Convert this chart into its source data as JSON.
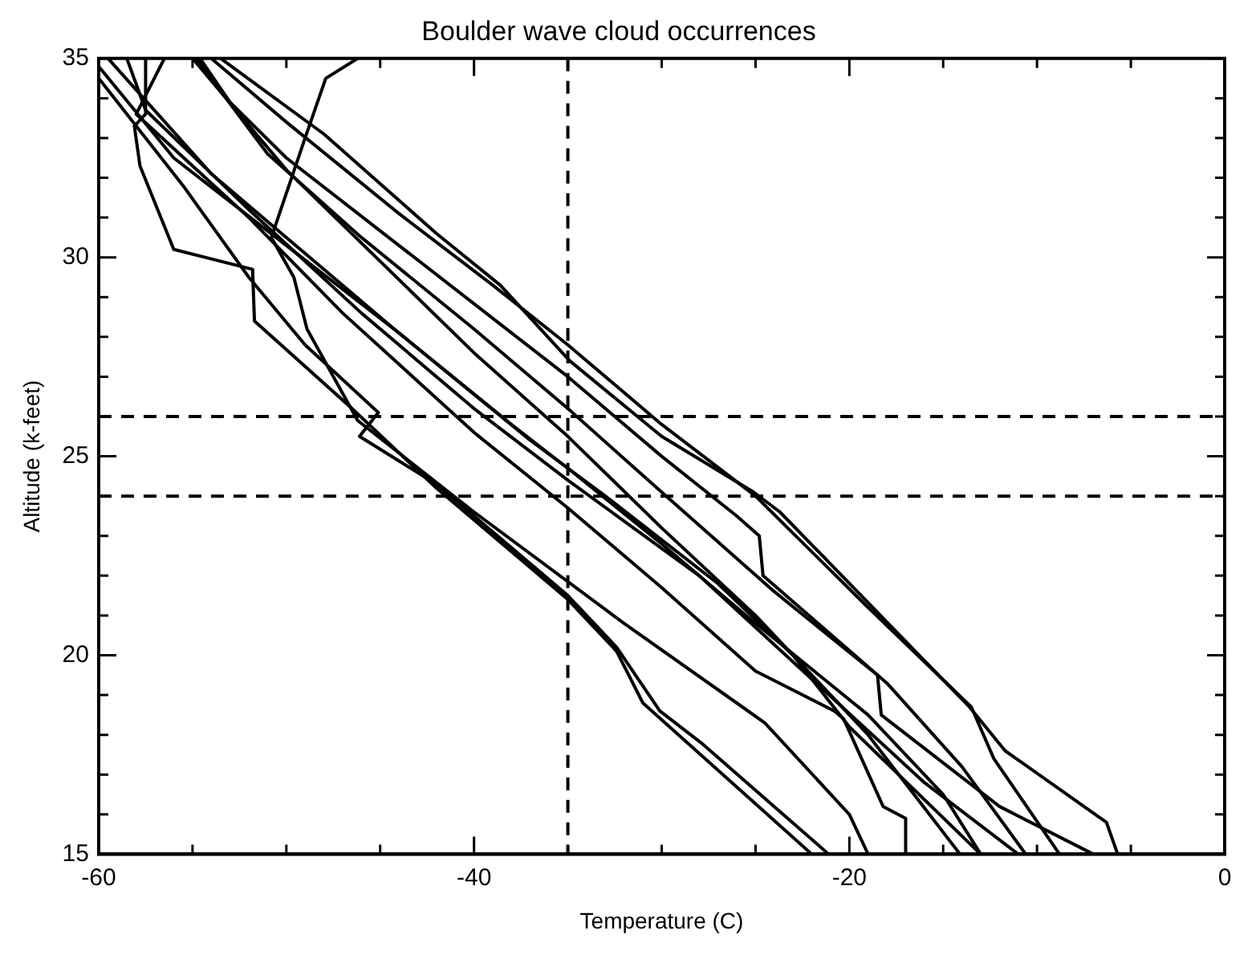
{
  "chart_data": {
    "type": "line",
    "title": "Boulder wave cloud occurrences",
    "xlabel": "Temperature (C)",
    "ylabel": "Altitude (k-feet)",
    "xlim": [
      -60,
      0
    ],
    "ylim": [
      15,
      35
    ],
    "xticks": [
      -60,
      {
        "value": -55,
        "label": null
      },
      {
        "value": -50,
        "label": null
      },
      {
        "value": -45,
        "label": null
      },
      -40,
      {
        "value": -35,
        "label": null
      },
      {
        "value": -30,
        "label": null
      },
      {
        "value": -25,
        "label": null
      },
      -20,
      {
        "value": -15,
        "label": null
      },
      {
        "value": -10,
        "label": null
      },
      {
        "value": -5,
        "label": null
      },
      0
    ],
    "yticks": [
      15,
      {
        "value": 16,
        "label": null
      },
      {
        "value": 17,
        "label": null
      },
      {
        "value": 18,
        "label": null
      },
      {
        "value": 19,
        "label": null
      },
      20,
      {
        "value": 21,
        "label": null
      },
      {
        "value": 22,
        "label": null
      },
      {
        "value": 23,
        "label": null
      },
      {
        "value": 24,
        "label": null
      },
      25,
      {
        "value": 26,
        "label": null
      },
      {
        "value": 27,
        "label": null
      },
      {
        "value": 28,
        "label": null
      },
      {
        "value": 29,
        "label": null
      },
      30,
      {
        "value": 31,
        "label": null
      },
      {
        "value": 32,
        "label": null
      },
      {
        "value": 33,
        "label": null
      },
      {
        "value": 34,
        "label": null
      },
      35
    ],
    "grid": false,
    "legend": false,
    "marker": "none",
    "line_style": "solid",
    "ref_lines": [
      {
        "axis": "x",
        "value": -35,
        "color": "#000000",
        "line_style": "dashed"
      },
      {
        "axis": "y",
        "value": 24,
        "color": "#000000",
        "line_style": "dashed"
      },
      {
        "axis": "y",
        "value": 26,
        "color": "#000000",
        "line_style": "dashed"
      }
    ],
    "series": [
      {
        "color": "#000000",
        "x": [
          -57.5,
          -57.5,
          -58.1,
          -57.8,
          -56,
          -51.8,
          -51.7,
          -46.5,
          -42,
          -35,
          -32.4,
          -31,
          -22
        ],
        "values": [
          35,
          33.6,
          33.3,
          32.3,
          30.2,
          29.7,
          28.4,
          26.2,
          24.2,
          21.4,
          20.1,
          18.8,
          15
        ]
      },
      {
        "color": "#000000",
        "x": [
          -60,
          -55.5,
          -52,
          -49,
          -45.1,
          -46.1,
          -42,
          -35,
          -32.4,
          -30.1,
          -27.9,
          -21.1
        ],
        "values": [
          34.5,
          31.8,
          29.5,
          27.8,
          26.1,
          25.5,
          24.3,
          21.5,
          20.2,
          18.6,
          17.8,
          15
        ]
      },
      {
        "color": "#000000",
        "x": [
          -46.2,
          -47.9,
          -49,
          -50.8,
          -49.6,
          -48.9,
          -46.2,
          -40,
          -32,
          -26,
          -24.5,
          -20,
          -19
        ],
        "values": [
          35,
          34.5,
          33,
          30.5,
          29.5,
          28.2,
          25.9,
          23.6,
          20.8,
          18.8,
          18.3,
          16,
          15
        ]
      },
      {
        "color": "#000000",
        "x": [
          -56.5,
          -58,
          -52,
          -47,
          -40,
          -35,
          -30,
          -25,
          -20.8,
          -20.3,
          -18.2,
          -17,
          -17
        ],
        "values": [
          35,
          33.6,
          31,
          28.6,
          25.6,
          23.7,
          21.7,
          19.6,
          18.6,
          18.4,
          16.2,
          15.9,
          15
        ]
      },
      {
        "color": "#000000",
        "x": [
          -60,
          -56,
          -50,
          -44,
          -38,
          -35,
          -30,
          -25,
          -19,
          -15,
          -13
        ],
        "values": [
          34.8,
          32.5,
          30.3,
          28.1,
          25.8,
          24.7,
          22.8,
          20.8,
          18.5,
          16.5,
          15
        ]
      },
      {
        "color": "#000000",
        "x": [
          -58.5,
          -57.5,
          -52,
          -46,
          -40,
          -35,
          -28,
          -22,
          -16,
          -11
        ],
        "values": [
          35,
          33.7,
          31.2,
          28.6,
          26.2,
          24.4,
          22,
          19.4,
          16.8,
          15
        ]
      },
      {
        "color": "#000000",
        "x": [
          -54.6,
          -53,
          -50,
          -44,
          -38,
          -35,
          -30,
          -26,
          -24.8,
          -24.6,
          -18,
          -14,
          -10.6
        ],
        "values": [
          35,
          33.9,
          32.5,
          30.3,
          28.1,
          27,
          25,
          23.5,
          23,
          22,
          19.3,
          17.2,
          15
        ]
      },
      {
        "color": "#000000",
        "x": [
          -54,
          -50,
          -44,
          -39,
          -35,
          -30,
          -25,
          -19,
          -13.5,
          -12.3,
          -8.8
        ],
        "values": [
          35,
          33.4,
          31.1,
          29.3,
          27.8,
          25.8,
          24,
          21.2,
          18.7,
          17.4,
          15
        ]
      },
      {
        "color": "#000000",
        "x": [
          -53.5,
          -48,
          -42,
          -38.6,
          -34.9,
          -30,
          -25.1,
          -23.7,
          -13.6,
          -11.7,
          -6.3,
          -5.7
        ],
        "values": [
          35,
          33.1,
          30.6,
          29.3,
          27.4,
          25.5,
          24.1,
          23.6,
          18.7,
          17.6,
          15.8,
          15
        ]
      },
      {
        "color": "#000000",
        "x": [
          -55,
          -50,
          -45,
          -40,
          -35,
          -30,
          -25,
          -20.6,
          -19,
          -14.1
        ],
        "values": [
          35,
          32.2,
          29.9,
          27.6,
          25.5,
          23.2,
          21,
          18.8,
          18,
          15
        ]
      },
      {
        "color": "#000000",
        "x": [
          -54.8,
          -51,
          -46,
          -40,
          -35,
          -30,
          -24,
          -18.5,
          -18.3,
          -12,
          -7
        ],
        "values": [
          35,
          32.6,
          30.5,
          28.2,
          26.2,
          24.1,
          21.6,
          19.5,
          18.5,
          16.2,
          15
        ]
      },
      {
        "color": "#000000",
        "x": [
          -59.5,
          -54,
          -50,
          -44,
          -37,
          -33,
          -27,
          -23,
          -20,
          -13
        ],
        "values": [
          35,
          32.1,
          30.5,
          28.1,
          25.4,
          24,
          21.8,
          20,
          18.2,
          15
        ]
      }
    ]
  }
}
